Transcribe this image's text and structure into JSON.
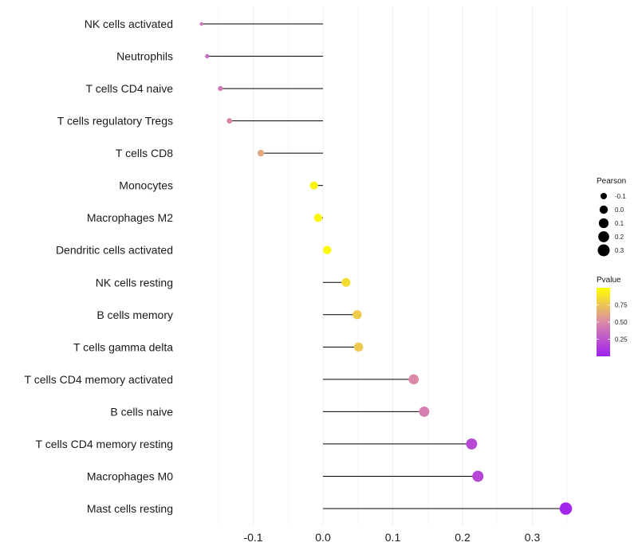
{
  "chart_data": {
    "type": "lollipop",
    "categories": [
      "NK cells activated",
      "Neutrophils",
      "T cells CD4 naive",
      "T cells regulatory  Tregs",
      "T cells CD8",
      "Monocytes",
      "Macrophages M2",
      "Dendritic cells activated",
      "NK cells resting",
      "B cells memory",
      "T cells gamma delta",
      "T cells CD4 memory activated",
      "B cells naive",
      "T cells CD4 memory resting",
      "Macrophages M0",
      "Mast cells resting"
    ],
    "pearson": [
      -0.174,
      -0.166,
      -0.147,
      -0.134,
      -0.089,
      -0.013,
      -0.007,
      0.006,
      0.033,
      0.049,
      0.051,
      0.13,
      0.145,
      0.213,
      0.222,
      0.348
    ],
    "pvalue": [
      0.4,
      0.35,
      0.42,
      0.48,
      0.62,
      0.95,
      0.97,
      0.98,
      0.85,
      0.78,
      0.77,
      0.5,
      0.45,
      0.2,
      0.18,
      0.03
    ],
    "xlim": [
      -0.2,
      0.36
    ],
    "x_ticks": [
      -0.1,
      0.0,
      0.1,
      0.2,
      0.3
    ],
    "x_tick_labels": [
      "-0.1",
      "0.0",
      "0.1",
      "0.2",
      "0.3"
    ],
    "xlabel": "",
    "ylabel": "",
    "legend_size": {
      "title": "Pearson",
      "values": [
        -0.1,
        0.0,
        0.1,
        0.2,
        0.3
      ],
      "labels": [
        "-0.1",
        "0.0",
        "0.1",
        "0.2",
        "0.3"
      ]
    },
    "legend_color": {
      "title": "Pvalue",
      "range": [
        0.0,
        1.0
      ],
      "ticks": [
        0.25,
        0.5,
        0.75
      ],
      "tick_labels": [
        "0.25",
        "0.50",
        "0.75"
      ],
      "low_color": "#a020f0",
      "mid_color": "#da8aa8",
      "high_color": "#ffff00"
    }
  }
}
